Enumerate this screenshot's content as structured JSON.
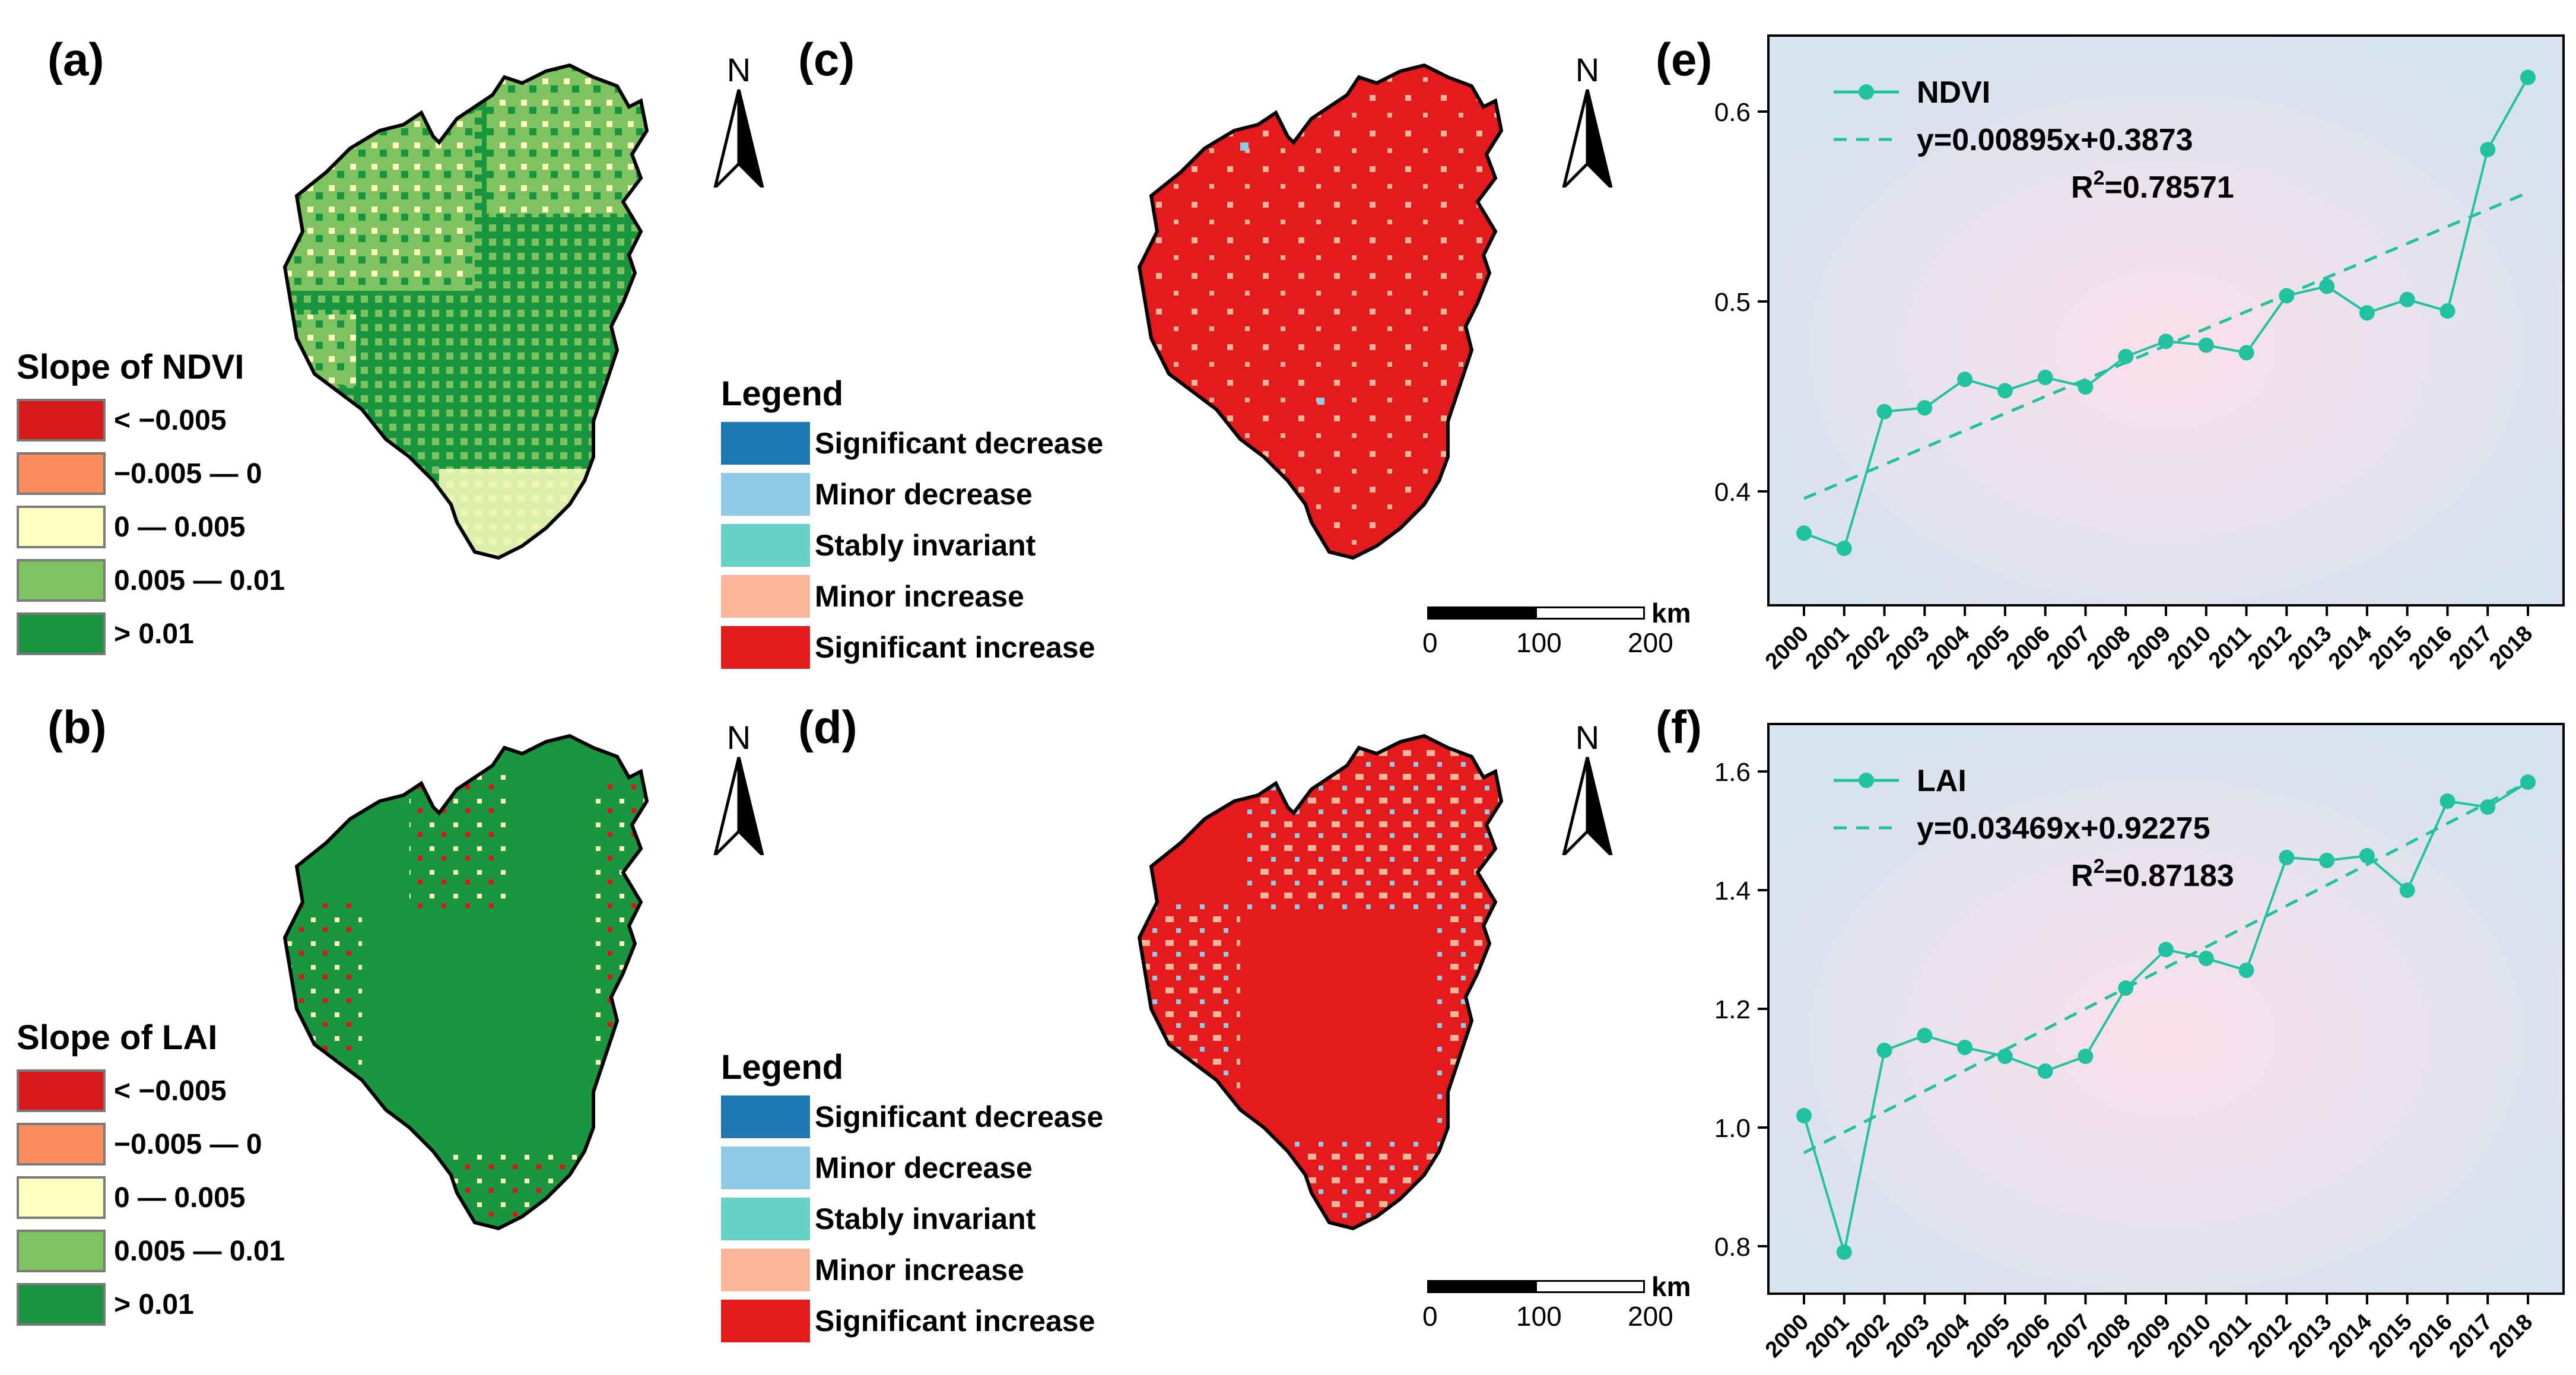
{
  "panels": {
    "a": "(a)",
    "b": "(b)",
    "c": "(c)",
    "d": "(d)",
    "e": "(e)",
    "f": "(f)"
  },
  "north_label": "N",
  "legend_a": {
    "title": "Slope of NDVI",
    "items": [
      {
        "label": "< −0.005",
        "color": "#d7191c"
      },
      {
        "label": "−0.005 — 0",
        "color": "#fd8d5c"
      },
      {
        "label": "0 — 0.005",
        "color": "#ffffc0"
      },
      {
        "label": "0.005 — 0.01",
        "color": "#7fc360"
      },
      {
        "label": "> 0.01",
        "color": "#1a9641"
      }
    ]
  },
  "legend_b": {
    "title": "Slope of LAI",
    "items": [
      {
        "label": "< −0.005",
        "color": "#d7191c"
      },
      {
        "label": "−0.005 — 0",
        "color": "#fd8d5c"
      },
      {
        "label": "0 — 0.005",
        "color": "#ffffc0"
      },
      {
        "label": "0.005 — 0.01",
        "color": "#7fc360"
      },
      {
        "label": "> 0.01",
        "color": "#1a9641"
      }
    ]
  },
  "legend_cd": {
    "title": "Legend",
    "items": [
      {
        "label": "Significant decrease",
        "color": "#1f78b4"
      },
      {
        "label": "Minor decrease",
        "color": "#8ecae6"
      },
      {
        "label": "Stably invariant",
        "color": "#66d1c5"
      },
      {
        "label": "Minor increase",
        "color": "#f9b59a"
      },
      {
        "label": "Significant increase",
        "color": "#e41a1c"
      }
    ]
  },
  "scalebar": {
    "ticks": [
      "0",
      "100",
      "200"
    ],
    "unit": "km"
  },
  "chart_data": [
    {
      "type": "line",
      "panel": "e",
      "title": "",
      "series": [
        {
          "name": "NDVI",
          "values": [
            0.378,
            0.37,
            0.442,
            0.444,
            0.459,
            0.453,
            0.46,
            0.455,
            0.471,
            0.479,
            0.477,
            0.473,
            0.503,
            0.508,
            0.494,
            0.501,
            0.495,
            0.58,
            0.618
          ]
        }
      ],
      "x": [
        "2000",
        "2001",
        "2002",
        "2003",
        "2004",
        "2005",
        "2006",
        "2007",
        "2008",
        "2009",
        "2010",
        "2011",
        "2012",
        "2013",
        "2014",
        "2015",
        "2016",
        "2017",
        "2018"
      ],
      "ylim": [
        0.34,
        0.64
      ],
      "yticks": [
        "0.4",
        "0.5",
        "0.6"
      ],
      "ytick_values": [
        0.4,
        0.5,
        0.6
      ],
      "fit": {
        "slope": 0.00895,
        "intercept": 0.3873
      },
      "fit_equation": "y=0.00895x+0.3873",
      "r2_label": "R",
      "r2_sup": "2",
      "r2_value": "=0.78571",
      "color": "#20c2a0"
    },
    {
      "type": "line",
      "panel": "f",
      "title": "",
      "series": [
        {
          "name": "LAI",
          "values": [
            1.02,
            0.79,
            1.13,
            1.155,
            1.135,
            1.12,
            1.095,
            1.12,
            1.235,
            1.3,
            1.285,
            1.265,
            1.455,
            1.45,
            1.458,
            1.4,
            1.55,
            1.54,
            1.582
          ]
        }
      ],
      "x": [
        "2000",
        "2001",
        "2002",
        "2003",
        "2004",
        "2005",
        "2006",
        "2007",
        "2008",
        "2009",
        "2010",
        "2011",
        "2012",
        "2013",
        "2014",
        "2015",
        "2016",
        "2017",
        "2018"
      ],
      "ylim": [
        0.72,
        1.68
      ],
      "yticks": [
        "0.8",
        "1.0",
        "1.2",
        "1.4",
        "1.6"
      ],
      "ytick_values": [
        0.8,
        1.0,
        1.2,
        1.4,
        1.6
      ],
      "fit": {
        "slope": 0.03469,
        "intercept": 0.92275
      },
      "fit_equation": "y=0.03469x+0.92275",
      "r2_label": "R",
      "r2_sup": "2",
      "r2_value": "=0.87183",
      "color": "#20c2a0"
    }
  ]
}
